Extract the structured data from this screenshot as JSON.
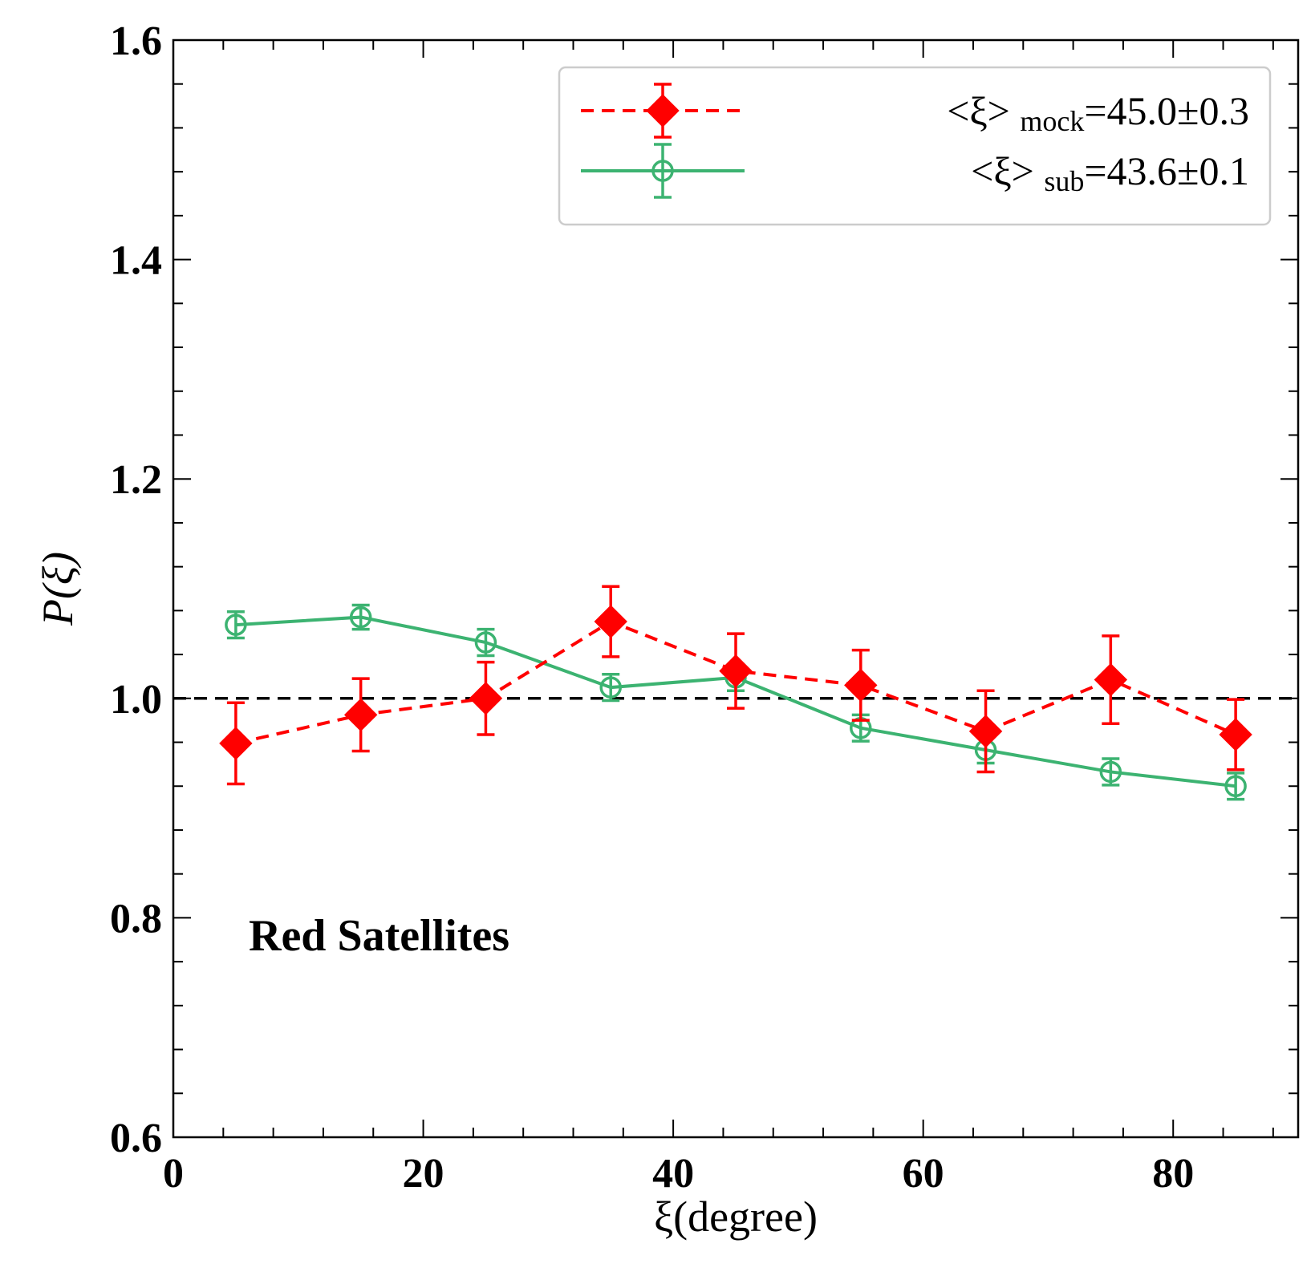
{
  "chart_data": {
    "type": "line",
    "xlabel": "ξ(degree)",
    "ylabel": "P(ξ)",
    "xlim": [
      0,
      90
    ],
    "ylim": [
      0.6,
      1.6
    ],
    "xticks": [
      0,
      20,
      40,
      60,
      80
    ],
    "yticks": [
      0.6,
      0.8,
      1.0,
      1.2,
      1.4,
      1.6
    ],
    "xtick_labels": [
      "0",
      "20",
      "40",
      "60",
      "80"
    ],
    "ytick_labels": [
      "0.6",
      "0.8",
      "1.0",
      "1.2",
      "1.4",
      "1.6"
    ],
    "reference_line": 1.0,
    "annotation": "Red Satellites",
    "legend_position": "top-right",
    "x": [
      5,
      15,
      25,
      35,
      45,
      55,
      65,
      75,
      85
    ],
    "series": [
      {
        "legend_main": "<ξ>",
        "legend_sub": "mock",
        "legend_value": "=45.0±0.3",
        "color": "#ff0000",
        "linestyle": "dashed",
        "marker": "diamond",
        "values": [
          0.959,
          0.985,
          1.0,
          1.07,
          1.025,
          1.012,
          0.97,
          1.017,
          0.967
        ],
        "errors": [
          0.037,
          0.033,
          0.033,
          0.032,
          0.034,
          0.032,
          0.037,
          0.04,
          0.032
        ]
      },
      {
        "legend_main": "<ξ>",
        "legend_sub": "sub",
        "legend_value": "=43.6±0.1",
        "color": "#3cb371",
        "linestyle": "solid",
        "marker": "open-circle",
        "values": [
          1.067,
          1.074,
          1.051,
          1.01,
          1.019,
          0.973,
          0.953,
          0.933,
          0.92
        ],
        "errors": [
          0.012,
          0.011,
          0.012,
          0.012,
          0.012,
          0.012,
          0.012,
          0.012,
          0.012
        ]
      }
    ]
  }
}
